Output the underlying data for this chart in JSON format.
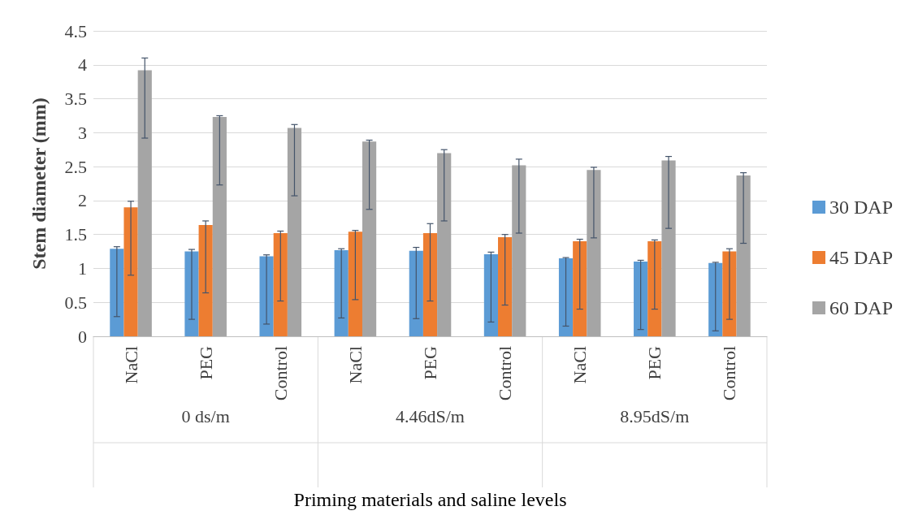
{
  "chart_data": {
    "type": "bar",
    "xlabel": "Priming materials and saline levels",
    "ylabel": "Stem diameter (mm)",
    "categories": [
      "NaCl",
      "PEG",
      "Control",
      "NaCl",
      "PEG",
      "Control",
      "NaCl",
      "PEG",
      "Control"
    ],
    "annotations": [
      "0 ds/m",
      "4.46dS/m",
      "8.95dS/m"
    ],
    "series": [
      {
        "name": "30 DAP",
        "color": "#5b9bd5",
        "values": [
          1.29,
          1.25,
          1.18,
          1.27,
          1.26,
          1.21,
          1.15,
          1.1,
          1.08
        ],
        "errors": [
          [
            0.29,
            1.32
          ],
          [
            0.25,
            1.28
          ],
          [
            0.18,
            1.2
          ],
          [
            0.27,
            1.29
          ],
          [
            0.26,
            1.31
          ],
          [
            0.21,
            1.24
          ],
          [
            0.15,
            1.16
          ],
          [
            0.1,
            1.12
          ],
          [
            0.08,
            1.09
          ]
        ]
      },
      {
        "name": "45 DAP",
        "color": "#ed7d31",
        "values": [
          1.9,
          1.64,
          1.52,
          1.54,
          1.52,
          1.46,
          1.4,
          1.4,
          1.25
        ],
        "errors": [
          [
            0.9,
            1.99
          ],
          [
            0.64,
            1.7
          ],
          [
            0.52,
            1.55
          ],
          [
            0.54,
            1.56
          ],
          [
            0.52,
            1.66
          ],
          [
            0.46,
            1.5
          ],
          [
            0.4,
            1.43
          ],
          [
            0.4,
            1.42
          ],
          [
            0.25,
            1.29
          ]
        ]
      },
      {
        "name": "60 DAP",
        "color": "#a5a5a5",
        "values": [
          3.92,
          3.23,
          3.07,
          2.87,
          2.7,
          2.52,
          2.45,
          2.59,
          2.37
        ],
        "errors": [
          [
            2.92,
            4.1
          ],
          [
            2.23,
            3.25
          ],
          [
            2.07,
            3.12
          ],
          [
            1.87,
            2.89
          ],
          [
            1.7,
            2.75
          ],
          [
            1.52,
            2.61
          ],
          [
            1.45,
            2.49
          ],
          [
            1.59,
            2.65
          ],
          [
            1.37,
            2.41
          ]
        ]
      }
    ],
    "ylim": [
      0,
      4.5
    ],
    "yticks": [
      0,
      0.5,
      1,
      1.5,
      2,
      2.5,
      3,
      3.5,
      4,
      4.5
    ],
    "grid": "y",
    "legend": "right"
  }
}
